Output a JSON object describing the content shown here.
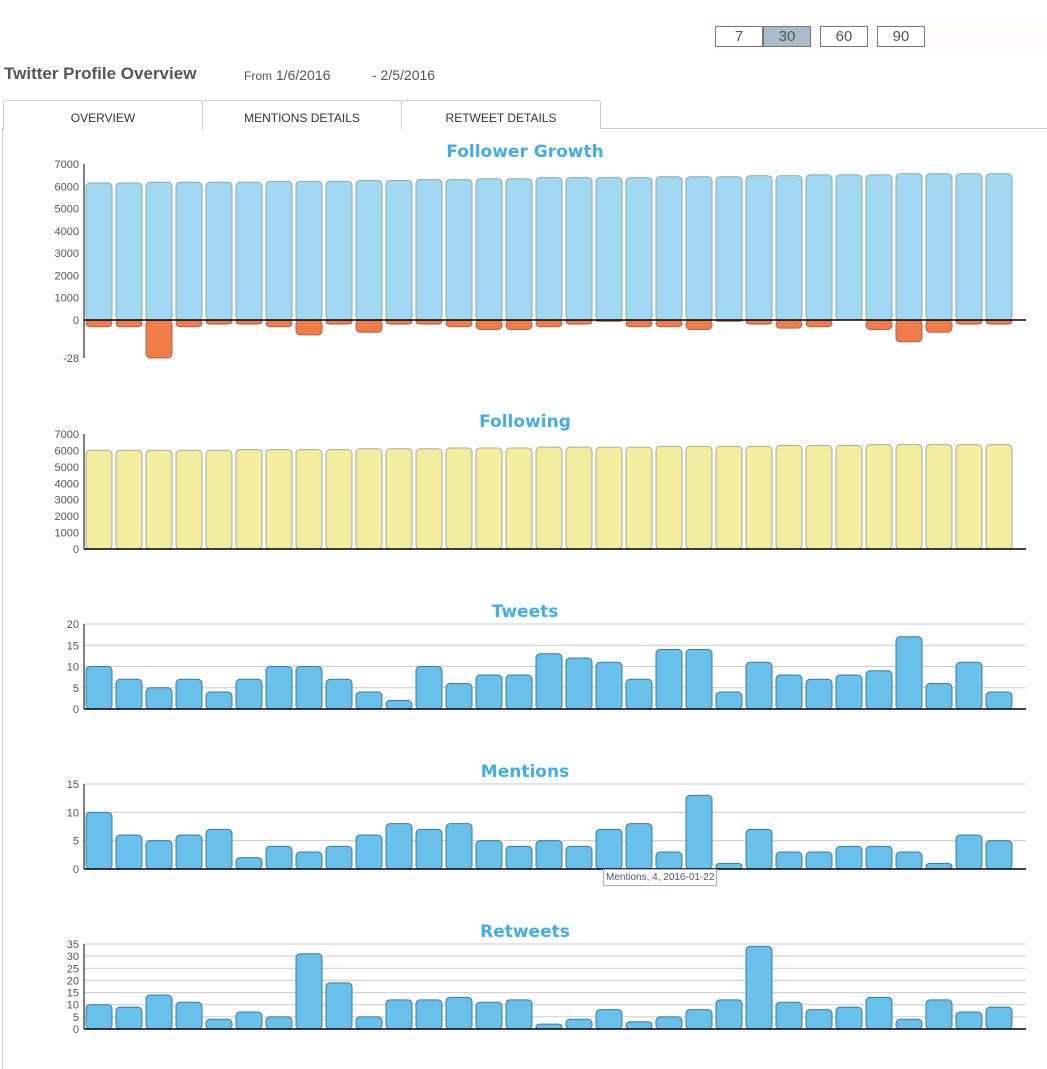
{
  "range_buttons": [
    {
      "label": "7",
      "active": false
    },
    {
      "label": "30",
      "active": true
    },
    {
      "label": "60",
      "active": false
    },
    {
      "label": "90",
      "active": false
    }
  ],
  "header": {
    "title": "Twitter Profile Overview",
    "from_label": "From",
    "from_date": "1/6/2016",
    "to_date": "- 2/5/2016"
  },
  "tabs": [
    {
      "label": "OVERVIEW",
      "active": true
    },
    {
      "label": "MENTIONS DETAILS"
    },
    {
      "label": "RETWEET DETAILS"
    }
  ],
  "colors": {
    "title": "#45ade6",
    "followers": "#a3d8f2",
    "unfollows": "#f07c4a",
    "following": "#f3eda0",
    "bar": "#69c0ea"
  },
  "tooltip": "Mentions, 4, 2016-01-22",
  "chart_data": [
    {
      "type": "bar",
      "title": "Follower Growth",
      "yticks": [
        "7000",
        "6000",
        "5000",
        "4000",
        "3000",
        "2000",
        "1000",
        "0",
        "-28"
      ],
      "ylim": [
        -28,
        7000
      ],
      "series": [
        {
          "values": [
            6150,
            6150,
            6180,
            6180,
            6180,
            6180,
            6220,
            6220,
            6220,
            6260,
            6260,
            6300,
            6300,
            6340,
            6340,
            6390,
            6390,
            6390,
            6390,
            6430,
            6430,
            6430,
            6470,
            6470,
            6510,
            6510,
            6510,
            6560,
            6560,
            6560,
            6560
          ]
        },
        {
          "values": [
            -5,
            -5,
            -28,
            -5,
            -3,
            -3,
            -5,
            -11,
            -3,
            -9,
            -3,
            -3,
            -5,
            -7,
            -7,
            -5,
            -3,
            -1,
            -5,
            -5,
            -7,
            -1,
            -3,
            -6,
            -5,
            0,
            -7,
            -16,
            -9,
            -3,
            -3
          ]
        }
      ]
    },
    {
      "type": "bar",
      "title": "Following",
      "yticks": [
        "7000",
        "6000",
        "5000",
        "4000",
        "3000",
        "2000",
        "1000",
        "0"
      ],
      "ylim": [
        0,
        7000
      ],
      "values": [
        6000,
        6000,
        6000,
        6000,
        6000,
        6050,
        6050,
        6050,
        6050,
        6100,
        6100,
        6100,
        6150,
        6150,
        6150,
        6200,
        6200,
        6200,
        6200,
        6250,
        6250,
        6250,
        6250,
        6300,
        6300,
        6300,
        6350,
        6350,
        6350,
        6350,
        6350
      ]
    },
    {
      "type": "bar",
      "title": "Tweets",
      "yticks": [
        "20",
        "15",
        "10",
        "5",
        "0"
      ],
      "ylim": [
        0,
        20
      ],
      "grid": true,
      "values": [
        10,
        7,
        5,
        7,
        4,
        7,
        10,
        10,
        7,
        4,
        2,
        10,
        6,
        8,
        8,
        13,
        12,
        11,
        7,
        14,
        14,
        4,
        11,
        8,
        7,
        8,
        9,
        17,
        6,
        11,
        4
      ]
    },
    {
      "type": "bar",
      "title": "Mentions",
      "yticks": [
        "15",
        "10",
        "5",
        "0"
      ],
      "ylim": [
        0,
        15
      ],
      "grid": true,
      "values": [
        10,
        6,
        5,
        6,
        7,
        2,
        4,
        3,
        4,
        6,
        8,
        7,
        8,
        5,
        4,
        5,
        4,
        7,
        8,
        3,
        13,
        1,
        7,
        3,
        3,
        4,
        4,
        3,
        1,
        6,
        5
      ]
    },
    {
      "type": "bar",
      "title": "Retweets",
      "yticks": [
        "35",
        "30",
        "25",
        "20",
        "15",
        "10",
        "5",
        "0"
      ],
      "ylim": [
        0,
        35
      ],
      "grid": true,
      "values": [
        10,
        9,
        14,
        11,
        4,
        7,
        5,
        31,
        19,
        5,
        12,
        12,
        13,
        11,
        12,
        2,
        4,
        8,
        3,
        5,
        8,
        12,
        34,
        11,
        8,
        9,
        13,
        4,
        12,
        7,
        9
      ]
    }
  ]
}
